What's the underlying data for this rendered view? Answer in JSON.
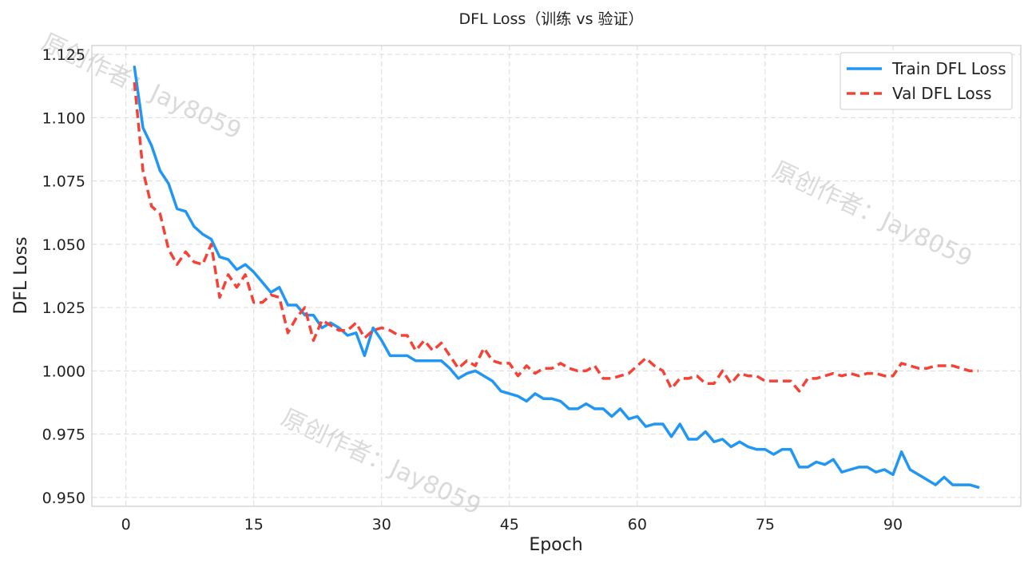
{
  "chart_data": {
    "type": "line",
    "title": "DFL Loss（训练 vs 验证）",
    "xlabel": "Epoch",
    "ylabel": "DFL Loss",
    "xlim": [
      -4,
      105
    ],
    "ylim": [
      0.9465,
      1.1285
    ],
    "xticks": [
      0,
      15,
      30,
      45,
      60,
      75,
      90
    ],
    "yticks": [
      0.95,
      0.975,
      1.0,
      1.025,
      1.05,
      1.075,
      1.1,
      1.125
    ],
    "ytick_labels": [
      "0.950",
      "0.975",
      "1.000",
      "1.025",
      "1.050",
      "1.075",
      "1.100",
      "1.125"
    ],
    "grid": true,
    "legend_position": "top-right",
    "x": [
      1,
      2,
      3,
      4,
      5,
      6,
      7,
      8,
      9,
      10,
      11,
      12,
      13,
      14,
      15,
      16,
      17,
      18,
      19,
      20,
      21,
      22,
      23,
      24,
      25,
      26,
      27,
      28,
      29,
      30,
      31,
      32,
      33,
      34,
      35,
      36,
      37,
      38,
      39,
      40,
      41,
      42,
      43,
      44,
      45,
      46,
      47,
      48,
      49,
      50,
      51,
      52,
      53,
      54,
      55,
      56,
      57,
      58,
      59,
      60,
      61,
      62,
      63,
      64,
      65,
      66,
      67,
      68,
      69,
      70,
      71,
      72,
      73,
      74,
      75,
      76,
      77,
      78,
      79,
      80,
      81,
      82,
      83,
      84,
      85,
      86,
      87,
      88,
      89,
      90,
      91,
      92,
      93,
      94,
      95,
      96,
      97,
      98,
      99,
      100
    ],
    "series": [
      {
        "name": "Train DFL Loss",
        "color": "#2196F3",
        "style": "solid",
        "values": [
          1.12,
          1.096,
          1.089,
          1.079,
          1.074,
          1.064,
          1.063,
          1.057,
          1.054,
          1.052,
          1.045,
          1.044,
          1.04,
          1.042,
          1.039,
          1.035,
          1.031,
          1.033,
          1.026,
          1.026,
          1.022,
          1.022,
          1.017,
          1.019,
          1.017,
          1.014,
          1.015,
          1.006,
          1.017,
          1.012,
          1.006,
          1.006,
          1.006,
          1.004,
          1.004,
          1.004,
          1.004,
          1.001,
          0.997,
          0.999,
          1.0,
          0.998,
          0.996,
          0.992,
          0.991,
          0.99,
          0.988,
          0.991,
          0.989,
          0.989,
          0.988,
          0.985,
          0.985,
          0.987,
          0.985,
          0.985,
          0.982,
          0.985,
          0.981,
          0.982,
          0.978,
          0.979,
          0.979,
          0.974,
          0.979,
          0.973,
          0.973,
          0.976,
          0.972,
          0.973,
          0.97,
          0.972,
          0.97,
          0.969,
          0.969,
          0.967,
          0.969,
          0.969,
          0.962,
          0.962,
          0.964,
          0.963,
          0.965,
          0.96,
          0.961,
          0.962,
          0.962,
          0.96,
          0.961,
          0.959,
          0.968,
          0.961,
          0.959,
          0.957,
          0.955,
          0.958,
          0.955,
          0.955,
          0.955,
          0.954
        ]
      },
      {
        "name": "Val DFL Loss",
        "color": "#F44336",
        "style": "dashed",
        "values": [
          1.114,
          1.079,
          1.065,
          1.062,
          1.048,
          1.042,
          1.047,
          1.043,
          1.042,
          1.05,
          1.029,
          1.038,
          1.033,
          1.038,
          1.027,
          1.027,
          1.03,
          1.029,
          1.015,
          1.021,
          1.025,
          1.012,
          1.02,
          1.018,
          1.016,
          1.016,
          1.019,
          1.013,
          1.016,
          1.017,
          1.016,
          1.014,
          1.014,
          1.008,
          1.012,
          1.008,
          1.011,
          1.006,
          1.001,
          1.004,
          1.002,
          1.009,
          1.004,
          1.003,
          1.003,
          0.998,
          1.002,
          0.999,
          1.001,
          1.001,
          1.003,
          1.001,
          1.0,
          1.0,
          1.002,
          0.997,
          0.997,
          0.998,
          0.999,
          1.002,
          1.005,
          1.002,
          1.0,
          0.993,
          0.997,
          0.997,
          0.998,
          0.995,
          0.995,
          1.0,
          0.995,
          0.999,
          0.998,
          0.998,
          0.996,
          0.996,
          0.996,
          0.996,
          0.992,
          0.997,
          0.997,
          0.998,
          0.999,
          0.998,
          0.999,
          0.998,
          0.999,
          0.999,
          0.998,
          0.998,
          1.003,
          1.002,
          1.001,
          1.001,
          1.002,
          1.002,
          1.002,
          1.001,
          1.0,
          1.0
        ]
      }
    ]
  },
  "watermark": "原创作者：Jay8059"
}
